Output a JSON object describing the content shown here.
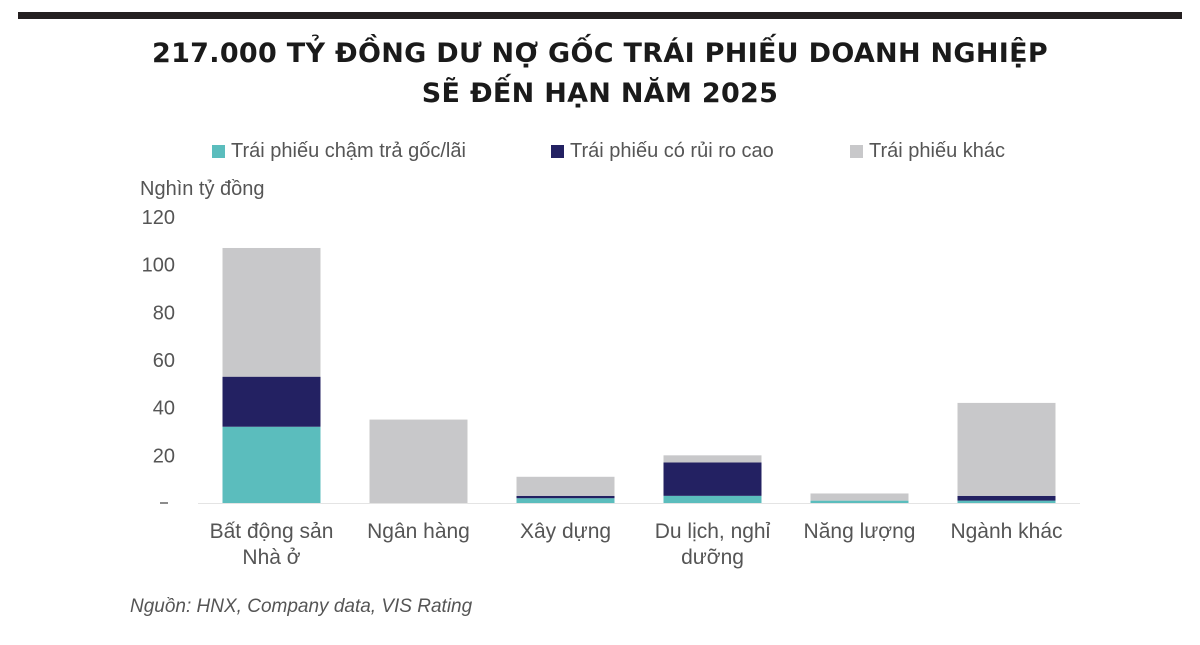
{
  "header": {
    "title_line1": "217.000 TỶ ĐỒNG DƯ NỢ GỐC TRÁI PHIẾU DOANH NGHIỆP",
    "title_line2": "SẼ ĐẾN HẠN NĂM 2025"
  },
  "source": "Nguồn: HNX, Company data, VIS Rating",
  "chart_data": {
    "type": "bar",
    "stacked": true,
    "title": "217.000 TỶ ĐỒNG DƯ NỢ GỐC TRÁI PHIẾU DOANH NGHIỆP SẼ ĐẾN HẠN NĂM 2025",
    "ylabel": "Nghìn tỷ đồng",
    "xlabel": "",
    "ylim": [
      0,
      120
    ],
    "yticks": [
      120,
      100,
      80,
      60,
      40,
      20
    ],
    "ytick_labels": [
      "120",
      "100",
      "80",
      "60",
      "40",
      "20"
    ],
    "grid": false,
    "legend_position": "top",
    "categories": [
      [
        "Bất động sản",
        "Nhà ở"
      ],
      [
        "Ngân hàng"
      ],
      [
        "Xây dựng"
      ],
      [
        "Du lịch, nghỉ",
        "dưỡng"
      ],
      [
        "Năng lượng"
      ],
      [
        "Ngành khác"
      ]
    ],
    "series": [
      {
        "name": "Trái phiếu chậm trả gốc/lãi",
        "color": "#5bbdbd",
        "values": [
          32,
          0,
          2,
          3,
          1,
          1
        ]
      },
      {
        "name": "Trái phiếu có rủi ro cao",
        "color": "#232162",
        "values": [
          21,
          0,
          1,
          14,
          0,
          2
        ]
      },
      {
        "name": "Trái phiếu khác",
        "color": "#c8c8ca",
        "values": [
          54,
          35,
          8,
          3,
          3,
          39
        ]
      }
    ]
  }
}
